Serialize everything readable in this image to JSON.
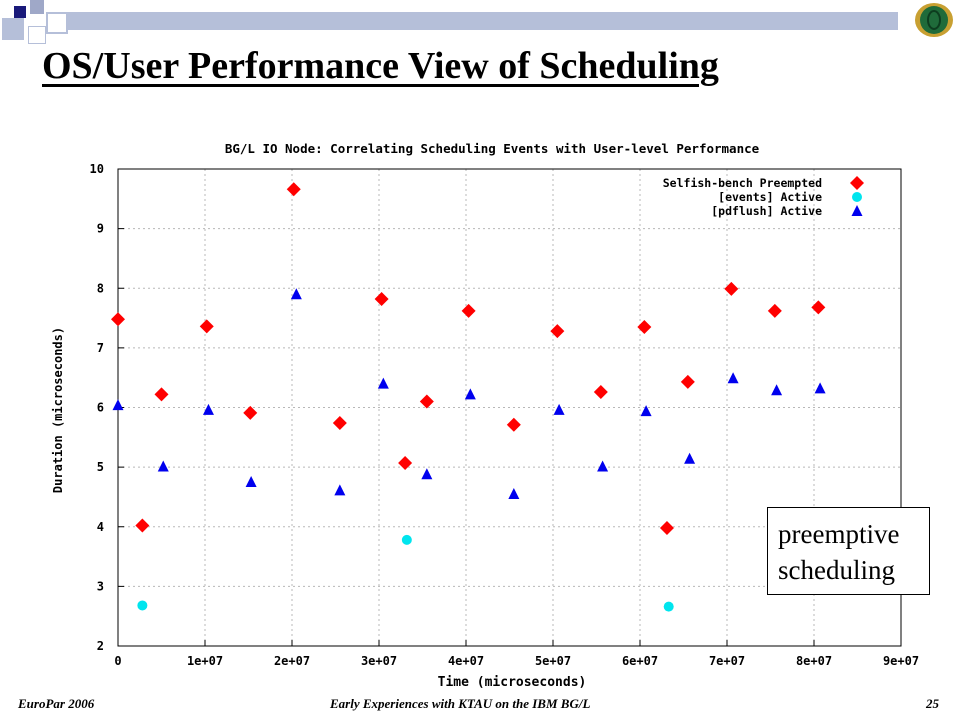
{
  "slide": {
    "title": "OS/User Performance View of Scheduling",
    "callout": [
      "preemptive",
      "scheduling"
    ],
    "footer_left": "EuroPar 2006",
    "footer_center": "Early Experiences with KTAU on the IBM BG/L",
    "footer_right": "25"
  },
  "colors": {
    "title_bar": "#b5bfd9",
    "deco_dark": "#1a1a7a",
    "deco_light": "#9fa8c8",
    "logo_green": "#1f6b3a",
    "logo_gold": "#c8a032",
    "grid": "#b8b8b8",
    "series_preempted": "#ff0000",
    "series_events": "#00e5ee",
    "series_pdflush": "#0000ee"
  },
  "chart_data": {
    "type": "scatter",
    "title": "BG/L IO Node: Correlating Scheduling Events with User-level Performance",
    "xlabel": "Time (microseconds)",
    "ylabel": "Duration (microseconds)",
    "xlim": [
      0,
      90000000
    ],
    "ylim": [
      2,
      10
    ],
    "x_ticks": [
      0,
      10000000,
      20000000,
      30000000,
      40000000,
      50000000,
      60000000,
      70000000,
      80000000,
      90000000
    ],
    "x_tick_labels": [
      "0",
      "1e+07",
      "2e+07",
      "3e+07",
      "4e+07",
      "5e+07",
      "6e+07",
      "7e+07",
      "8e+07",
      "9e+07"
    ],
    "y_ticks": [
      2,
      3,
      4,
      5,
      6,
      7,
      8,
      9,
      10
    ],
    "y_tick_labels": [
      "2",
      "3",
      "4",
      "5",
      "6",
      "7",
      "8",
      "9",
      "10"
    ],
    "grid": true,
    "legend_position": "top-right",
    "series": [
      {
        "name": "Selfish-bench Preempted",
        "marker": "diamond",
        "color": "#ff0000",
        "points": [
          [
            0,
            7.48
          ],
          [
            2800000,
            4.02
          ],
          [
            5000000,
            6.22
          ],
          [
            10200000,
            7.36
          ],
          [
            15200000,
            5.91
          ],
          [
            20200000,
            9.66
          ],
          [
            25500000,
            5.74
          ],
          [
            30300000,
            7.82
          ],
          [
            33000000,
            5.07
          ],
          [
            35500000,
            6.1
          ],
          [
            40300000,
            7.62
          ],
          [
            45500000,
            5.71
          ],
          [
            50500000,
            7.28
          ],
          [
            55500000,
            6.26
          ],
          [
            60500000,
            7.35
          ],
          [
            63100000,
            3.98
          ],
          [
            65500000,
            6.43
          ],
          [
            70500000,
            7.99
          ],
          [
            75500000,
            7.62
          ],
          [
            80500000,
            7.68
          ]
        ]
      },
      {
        "name": "[events] Active",
        "marker": "circle",
        "color": "#00e5ee",
        "points": [
          [
            2800000,
            2.68
          ],
          [
            33200000,
            3.78
          ],
          [
            63300000,
            2.66
          ]
        ]
      },
      {
        "name": "[pdflush] Active",
        "marker": "triangle",
        "color": "#0000ee",
        "points": [
          [
            0,
            6.04
          ],
          [
            5200000,
            5.01
          ],
          [
            10400000,
            5.96
          ],
          [
            15300000,
            4.75
          ],
          [
            20500000,
            7.9
          ],
          [
            25500000,
            4.61
          ],
          [
            30500000,
            6.4
          ],
          [
            35500000,
            4.88
          ],
          [
            40500000,
            6.22
          ],
          [
            45500000,
            4.55
          ],
          [
            50700000,
            5.96
          ],
          [
            55700000,
            5.01
          ],
          [
            60700000,
            5.94
          ],
          [
            65700000,
            5.14
          ],
          [
            70700000,
            6.49
          ],
          [
            75700000,
            6.29
          ],
          [
            80700000,
            6.32
          ]
        ]
      }
    ]
  }
}
